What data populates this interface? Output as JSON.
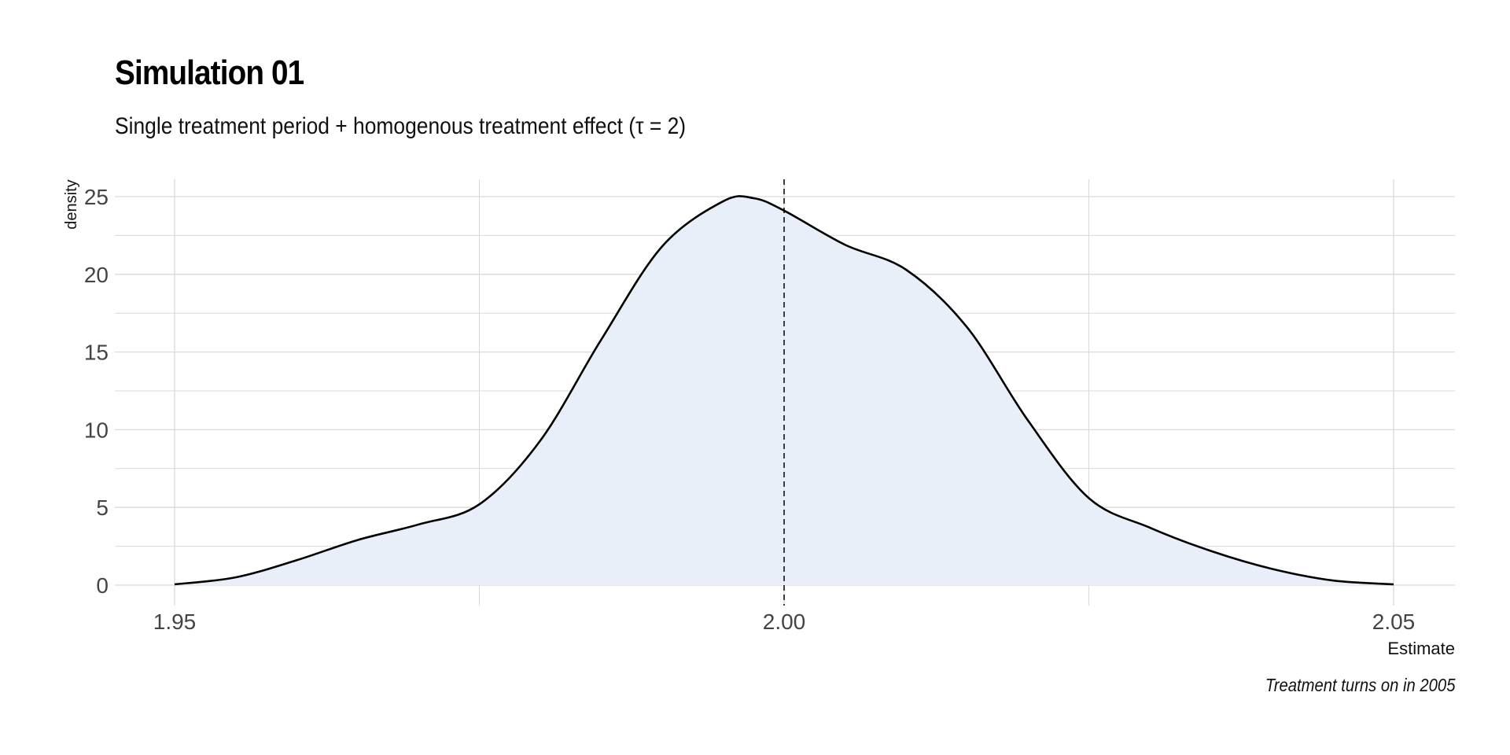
{
  "chart_data": {
    "type": "area",
    "title": "Simulation 01",
    "subtitle": "Single treatment period + homogenous treatment effect (τ = 2)",
    "caption": "Treatment turns on in 2005",
    "xlabel": "Estimate",
    "ylabel": "density",
    "xlim": [
      1.945,
      2.0555
    ],
    "ylim": [
      0,
      26
    ],
    "x_ticks": [
      1.95,
      2.0,
      2.05
    ],
    "x_tick_labels": [
      "1.95",
      "2.00",
      "2.05"
    ],
    "x_minor_gridlines": [
      1.975,
      2.025
    ],
    "y_ticks": [
      0,
      5,
      10,
      15,
      20,
      25
    ],
    "y_tick_labels": [
      "0",
      "5",
      "10",
      "15",
      "20",
      "25"
    ],
    "y_minor_gridlines": [
      2.5,
      7.5,
      12.5,
      17.5,
      22.5
    ],
    "grid": true,
    "reference_line": {
      "x": 2.0,
      "style": "dashed"
    },
    "fill_color": "#e8eff8",
    "line_color": "#000000",
    "grid_color": "#d9d9d9",
    "x": [
      1.95,
      1.955,
      1.96,
      1.965,
      1.97,
      1.975,
      1.98,
      1.985,
      1.99,
      1.995,
      1.9975,
      2.0,
      2.005,
      2.01,
      2.015,
      2.02,
      2.025,
      2.03,
      2.035,
      2.04,
      2.045,
      2.05
    ],
    "y": [
      0.05,
      0.5,
      1.6,
      2.9,
      3.9,
      5.2,
      9.3,
      15.8,
      21.8,
      24.7,
      24.9,
      24.1,
      21.9,
      20.3,
      16.6,
      10.6,
      5.6,
      3.7,
      2.2,
      1.05,
      0.3,
      0.05
    ]
  }
}
